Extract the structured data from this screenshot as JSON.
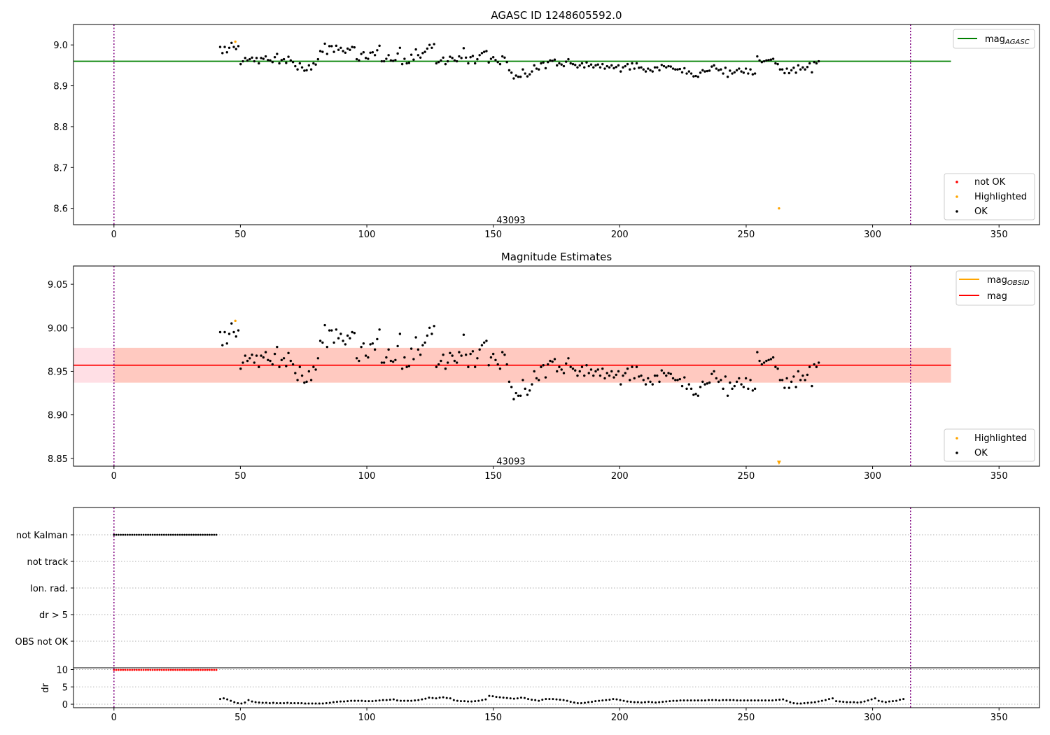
{
  "chart_data": [
    {
      "type": "scatter",
      "title": "AGASC ID 1248605592.0",
      "xlim": [
        -16,
        366
      ],
      "ylim": [
        8.56,
        9.05
      ],
      "xticks": [
        0,
        50,
        100,
        150,
        200,
        250,
        300,
        350
      ],
      "yticks": [
        8.6,
        8.7,
        8.8,
        8.9,
        9.0
      ],
      "ytick_labels": [
        "8.6",
        "8.7",
        "8.8",
        "8.9",
        "9.0"
      ],
      "vlines": [
        0,
        315
      ],
      "annotation": {
        "text": "43093",
        "x": 157,
        "y": 8.572
      },
      "hline": {
        "value": 8.96,
        "xrange": [
          -16,
          331
        ],
        "color": "#008000"
      },
      "legend_top": {
        "placement": "top-right",
        "entries": [
          {
            "label": "mag",
            "subscript": "AGASC",
            "color": "#008000"
          }
        ]
      },
      "legend_bottom": {
        "placement": "bottom-right",
        "entries": [
          {
            "label": "not OK",
            "color": "#ff0000"
          },
          {
            "label": "Highlighted",
            "color": "#ffa500"
          },
          {
            "label": "OK",
            "color": "#000000"
          }
        ]
      },
      "highlighted": [
        [
          48,
          9.008
        ],
        [
          263,
          8.6
        ]
      ],
      "series_ok": {
        "x_start": 42,
        "x_step": 0.9,
        "values": [
          8.995,
          8.98,
          8.995,
          8.982,
          8.993,
          9.005,
          8.995,
          8.99,
          8.997,
          8.953,
          8.96,
          8.968,
          8.962,
          8.965,
          8.969,
          8.96,
          8.968,
          8.955,
          8.968,
          8.966,
          8.972,
          8.963,
          8.962,
          8.958,
          8.97,
          8.978,
          8.955,
          8.963,
          8.965,
          8.956,
          8.971,
          8.962,
          8.958,
          8.948,
          8.94,
          8.955,
          8.945,
          8.937,
          8.938,
          8.95,
          8.94,
          8.955,
          8.952,
          8.965,
          8.985,
          8.983,
          9.003,
          8.978,
          8.997,
          8.997,
          8.983,
          8.998,
          8.988,
          8.993,
          8.985,
          8.981,
          8.991,
          8.988,
          8.995,
          8.994,
          8.965,
          8.962,
          8.978,
          8.982,
          8.968,
          8.966,
          8.981,
          8.982,
          8.975,
          8.987,
          8.998,
          8.96,
          8.96,
          8.966,
          8.975,
          8.962,
          8.961,
          8.963,
          8.979,
          8.993,
          8.953,
          8.966,
          8.955,
          8.956,
          8.976,
          8.964,
          8.989,
          8.975,
          8.969,
          8.98,
          8.983,
          8.991,
          9.0,
          8.993,
          9.002,
          8.955,
          8.958,
          8.962,
          8.969,
          8.953,
          8.96,
          8.971,
          8.968,
          8.962,
          8.96,
          8.972,
          8.968,
          8.992,
          8.969,
          8.955,
          8.97,
          8.973,
          8.955,
          8.965,
          8.975,
          8.98,
          8.983,
          8.985,
          8.957,
          8.966,
          8.97,
          8.963,
          8.958,
          8.953,
          8.972,
          8.969,
          8.958,
          8.938,
          8.932,
          8.918,
          8.925,
          8.922,
          8.922,
          8.94,
          8.93,
          8.923,
          8.928,
          8.935,
          8.95,
          8.942,
          8.94,
          8.955,
          8.957,
          8.943,
          8.958,
          8.962,
          8.961,
          8.964,
          8.95,
          8.955,
          8.952,
          8.948,
          8.959,
          8.965,
          8.955,
          8.953,
          8.951,
          8.945,
          8.95,
          8.955,
          8.945,
          8.957,
          8.948,
          8.952,
          8.945,
          8.95,
          8.952,
          8.945,
          8.953,
          8.942,
          8.948,
          8.945,
          8.95,
          8.943,
          8.946,
          8.95,
          8.935,
          8.945,
          8.948,
          8.953,
          8.94,
          8.955,
          8.942,
          8.955,
          8.944,
          8.945,
          8.94,
          8.935,
          8.942,
          8.938,
          8.935,
          8.945,
          8.945,
          8.938,
          8.951,
          8.948,
          8.945,
          8.948,
          8.947,
          8.942,
          8.94,
          8.94,
          8.941,
          8.933,
          8.943,
          8.93,
          8.935,
          8.93,
          8.923,
          8.924,
          8.922,
          8.932,
          8.938,
          8.935,
          8.936,
          8.937,
          8.947,
          8.95,
          8.942,
          8.938,
          8.94,
          8.93,
          8.944,
          8.922,
          8.937,
          8.93,
          8.933,
          8.938,
          8.942,
          8.935,
          8.932,
          8.942,
          8.93,
          8.94,
          8.928,
          8.93,
          8.972,
          8.962,
          8.958,
          8.96,
          8.962,
          8.963,
          8.964,
          8.966,
          8.955,
          8.953,
          8.94,
          8.94,
          8.931,
          8.942,
          8.931,
          8.938,
          8.944,
          8.932,
          8.95,
          8.94,
          8.945,
          8.94,
          8.946,
          8.955,
          8.933,
          8.958,
          8.955,
          8.96
        ]
      }
    },
    {
      "type": "scatter",
      "title": "Magnitude Estimates",
      "xlim": [
        -16,
        366
      ],
      "ylim": [
        8.841,
        9.071
      ],
      "xticks": [
        0,
        50,
        100,
        150,
        200,
        250,
        300,
        350
      ],
      "yticks": [
        8.85,
        8.9,
        8.95,
        9.0,
        9.05
      ],
      "ytick_labels": [
        "8.85",
        "8.90",
        "8.95",
        "9.00",
        "9.05"
      ],
      "vlines": [
        0,
        315
      ],
      "annotation": {
        "text": "43093",
        "x": 157,
        "y": 8.847
      },
      "hline": {
        "value": 8.957,
        "xrange": [
          -16,
          331
        ],
        "color": "#ff0000"
      },
      "band_outer": [
        8.937,
        8.977
      ],
      "band_inner": [
        8.937,
        8.977
      ],
      "legend_top": {
        "placement": "top-right",
        "entries": [
          {
            "label": "mag",
            "subscript": "OBSID",
            "color": "#ffa500"
          },
          {
            "label": "mag",
            "subscript": "",
            "color": "#ff0000"
          }
        ]
      },
      "legend_bottom": {
        "placement": "bottom-right",
        "entries": [
          {
            "label": "Highlighted",
            "color": "#ffa500"
          },
          {
            "label": "OK",
            "color": "#000000"
          }
        ]
      },
      "highlighted": [
        [
          48,
          9.008
        ]
      ],
      "highlighted_marker": [
        [
          263,
          8.845
        ]
      ]
    },
    {
      "type": "scatter",
      "title": "",
      "xlim": [
        -16,
        366
      ],
      "xticks": [
        0,
        50,
        100,
        150,
        200,
        250,
        300,
        350
      ],
      "vlines": [
        0,
        315
      ],
      "flags": [
        "not Kalman",
        "not track",
        "Ion. rad.",
        "dr > 5",
        "OBS not OK"
      ],
      "not_kalman_range": [
        0,
        41
      ],
      "dr_panel": {
        "ylabel": "dr",
        "ylim": [
          -1,
          10.5
        ],
        "yticks": [
          0,
          5,
          10
        ],
        "ytick_labels": [
          "0",
          "5",
          "10"
        ],
        "high_range": [
          0,
          41
        ],
        "high_value": 9.9,
        "low_values_x_start": 42,
        "low_values": [
          1.5,
          1.7,
          1.4,
          1.0,
          0.6,
          0.3,
          0.2,
          0.5,
          1.2,
          0.8,
          0.6,
          0.5,
          0.4,
          0.4,
          0.3,
          0.4,
          0.3,
          0.3,
          0.3,
          0.4,
          0.3,
          0.3,
          0.3,
          0.3,
          0.2,
          0.2,
          0.2,
          0.2,
          0.2,
          0.2,
          0.3,
          0.4,
          0.6,
          0.7,
          0.8,
          0.8,
          0.9,
          1.0,
          1.0,
          1.0,
          1.0,
          0.9,
          0.9,
          0.9,
          1.0,
          1.1,
          1.2,
          1.2,
          1.3,
          1.4,
          1.1,
          1.0,
          1.0,
          1.0,
          1.0,
          1.1,
          1.2,
          1.4,
          1.6,
          1.9,
          1.8,
          1.7,
          1.9,
          2.0,
          1.8,
          1.7,
          1.2,
          1.0,
          0.9,
          0.9,
          0.8,
          0.8,
          0.9,
          1.0,
          1.2,
          1.4,
          2.4,
          2.3,
          2.1,
          2.0,
          1.9,
          1.8,
          1.7,
          1.6,
          1.7,
          1.9,
          1.8,
          1.5,
          1.3,
          1.2,
          1.0,
          1.3,
          1.5,
          1.5,
          1.5,
          1.4,
          1.3,
          1.2,
          1.0,
          0.7,
          0.5,
          0.3,
          0.3,
          0.4,
          0.6,
          0.7,
          0.9,
          1.0,
          1.1,
          1.2,
          1.3,
          1.5,
          1.4,
          1.2,
          1.0,
          0.8,
          0.7,
          0.6,
          0.6,
          0.5,
          0.6,
          0.7,
          0.6,
          0.5,
          0.6,
          0.7,
          0.8,
          0.9,
          1.0,
          1.0,
          1.1,
          1.1,
          1.1,
          1.1,
          1.1,
          1.1,
          1.1,
          1.1,
          1.2,
          1.2,
          1.2,
          1.1,
          1.2,
          1.2,
          1.2,
          1.2,
          1.1,
          1.1,
          1.1,
          1.1,
          1.1,
          1.1,
          1.1,
          1.1,
          1.1,
          1.1,
          1.1,
          1.2,
          1.3,
          1.4,
          1.0,
          0.6,
          0.3,
          0.2,
          0.2,
          0.3,
          0.4,
          0.5,
          0.6,
          0.8,
          1.0,
          1.2,
          1.5,
          1.7,
          0.9,
          0.8,
          0.7,
          0.6,
          0.6,
          0.6,
          0.5,
          0.6,
          0.8,
          1.1,
          1.4,
          1.7,
          1.0,
          0.8,
          0.6,
          0.8,
          0.9,
          1.0,
          1.3,
          1.5
        ]
      }
    }
  ]
}
